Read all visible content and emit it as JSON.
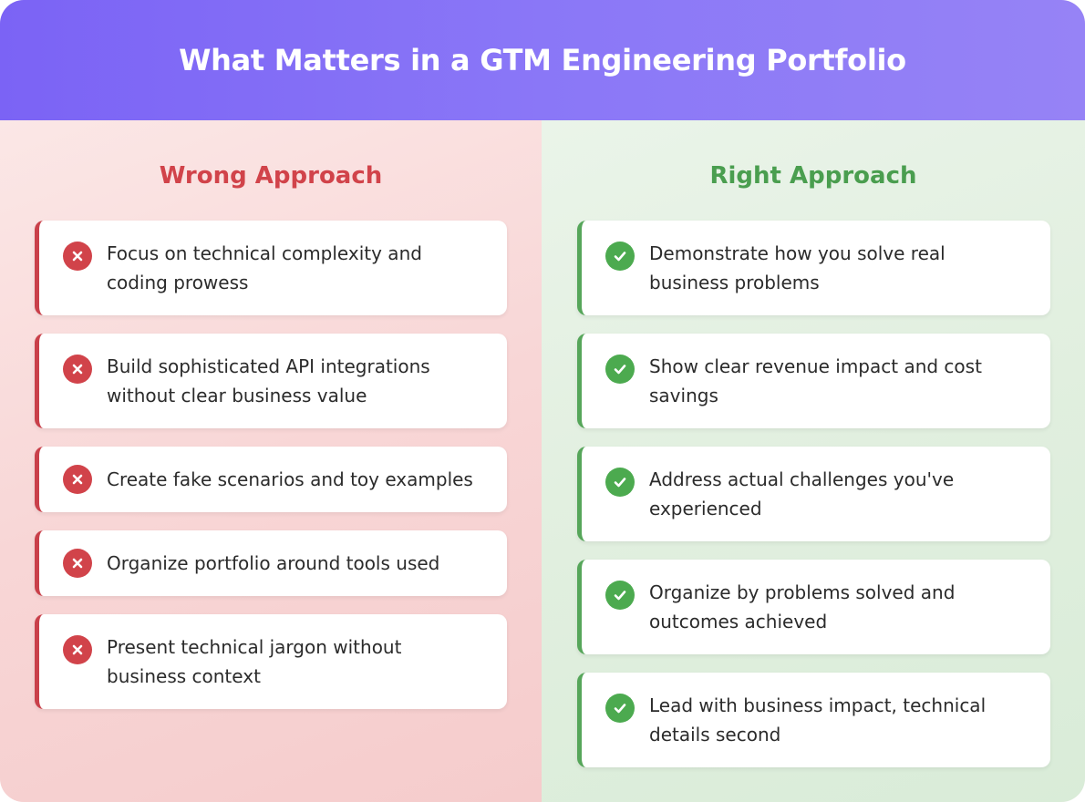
{
  "header": {
    "title": "What Matters in a GTM Engineering Portfolio"
  },
  "colors": {
    "header_gradient_start": "#7b63f5",
    "header_gradient_end": "#9683f6",
    "wrong_accent": "#d1434a",
    "right_accent": "#4caa4f"
  },
  "wrong": {
    "title": "Wrong Approach",
    "icon": "x-circle-icon",
    "items": [
      {
        "text": "Focus on technical complexity and coding prowess"
      },
      {
        "text": "Build sophisticated API integrations without clear business value"
      },
      {
        "text": "Create fake scenarios and toy examples"
      },
      {
        "text": "Organize portfolio around tools used"
      },
      {
        "text": "Present technical jargon without business context"
      }
    ]
  },
  "right": {
    "title": "Right Approach",
    "icon": "check-circle-icon",
    "items": [
      {
        "text": "Demonstrate how you solve real business problems"
      },
      {
        "text": "Show clear revenue impact and cost savings"
      },
      {
        "text": "Address actual challenges you've experienced"
      },
      {
        "text": "Organize by problems solved and outcomes achieved"
      },
      {
        "text": "Lead with business impact, technical details second"
      }
    ]
  }
}
